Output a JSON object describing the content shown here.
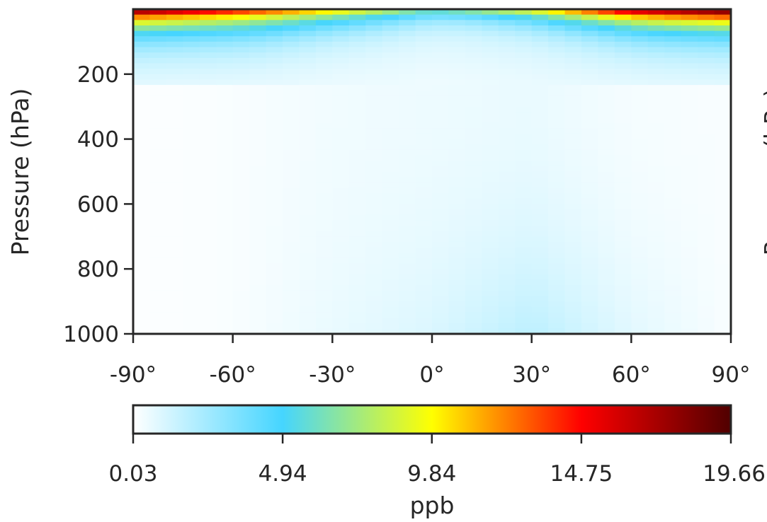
{
  "chart_data": {
    "type": "heatmap",
    "title": "",
    "x": {
      "range": [
        -90,
        90
      ],
      "ticks": [
        -90,
        -60,
        -30,
        0,
        30,
        60,
        90
      ],
      "tick_labels": [
        "-90°",
        "-60°",
        "-30°",
        "0°",
        "30°",
        "60°",
        "90°"
      ]
    },
    "y": {
      "label": "Pressure (hPa)",
      "range": [
        1000,
        0
      ],
      "inverted": true,
      "ticks": [
        200,
        400,
        600,
        800,
        1000
      ],
      "tick_labels": [
        "200",
        "400",
        "600",
        "800",
        "1000"
      ]
    },
    "right_panel_ylabel_partial": "Pressure (hPa)",
    "colorbar": {
      "label": "ppb",
      "range": [
        0.03,
        19.66
      ],
      "ticks": [
        0.03,
        4.94,
        9.84,
        14.75,
        19.66
      ],
      "tick_labels": [
        "0.03",
        "4.94",
        "9.84",
        "14.75",
        "19.66"
      ],
      "colormap": [
        "#ffffff",
        "#45d5ff",
        "#ffff00",
        "#ff0000",
        "#500000"
      ]
    },
    "grid": false,
    "field_description": {
      "latitudes": [
        -90,
        -60,
        -30,
        0,
        30,
        60,
        90
      ],
      "top_of_atmosphere_ppb": [
        16.5,
        13.0,
        9.5,
        5.5,
        8.5,
        15.0,
        17.5
      ],
      "upper_troposphere_ppb": [
        2.8,
        2.5,
        1.5,
        0.9,
        1.2,
        2.3,
        2.8
      ],
      "mid_troposphere_ppb": [
        0.1,
        0.2,
        0.4,
        0.5,
        0.6,
        0.3,
        0.2
      ],
      "surface_ppb": [
        0.1,
        0.2,
        0.6,
        1.0,
        1.8,
        0.8,
        0.2
      ]
    }
  }
}
